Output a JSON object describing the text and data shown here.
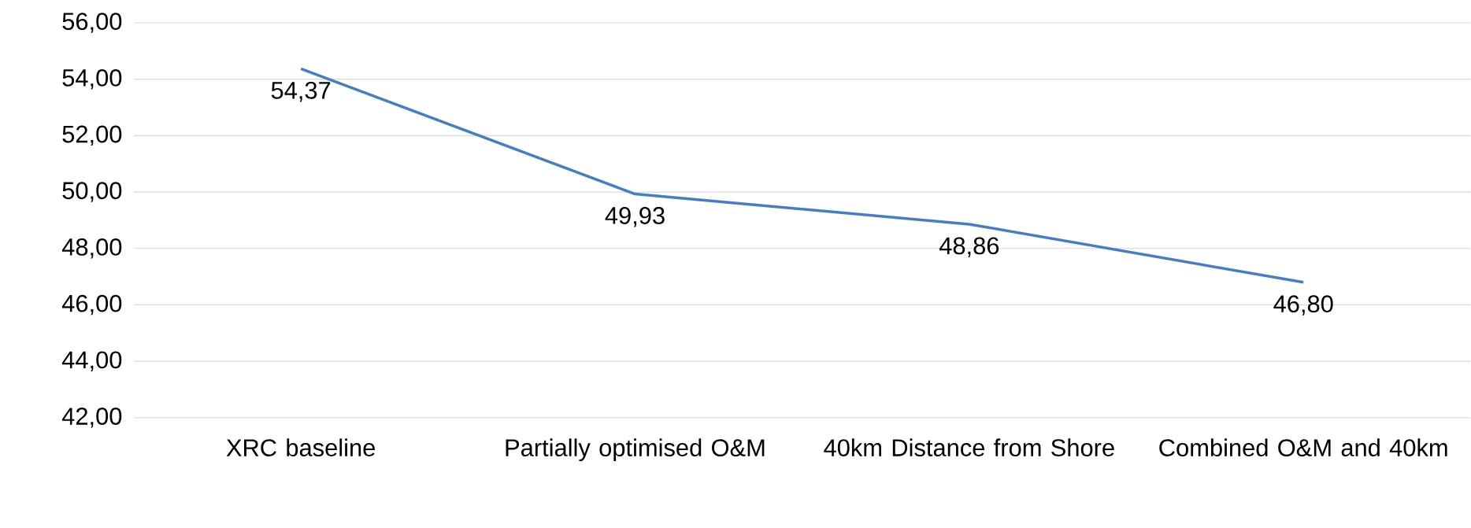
{
  "chart_data": {
    "type": "line",
    "categories": [
      "XRC baseline",
      "Partially optimised O&M",
      "40km Distance from Shore",
      "Combined O&M and 40km"
    ],
    "series": [
      {
        "color": "#4a7ebb",
        "values": [
          54.37,
          49.93,
          48.86,
          46.8
        ],
        "value_labels": [
          "54,37",
          "49,93",
          "48,86",
          "46,80"
        ]
      }
    ],
    "ylim": [
      42,
      56
    ],
    "yticks": [
      {
        "value": 42,
        "label": "42,00"
      },
      {
        "value": 44,
        "label": "44,00"
      },
      {
        "value": 46,
        "label": "46,00"
      },
      {
        "value": 48,
        "label": "48,00"
      },
      {
        "value": 50,
        "label": "50,00"
      },
      {
        "value": 52,
        "label": "52,00"
      },
      {
        "value": 54,
        "label": "54,00"
      },
      {
        "value": 56,
        "label": "56,00"
      }
    ],
    "grid": "y",
    "marker": "none",
    "line_style": "solid",
    "legend": false
  }
}
